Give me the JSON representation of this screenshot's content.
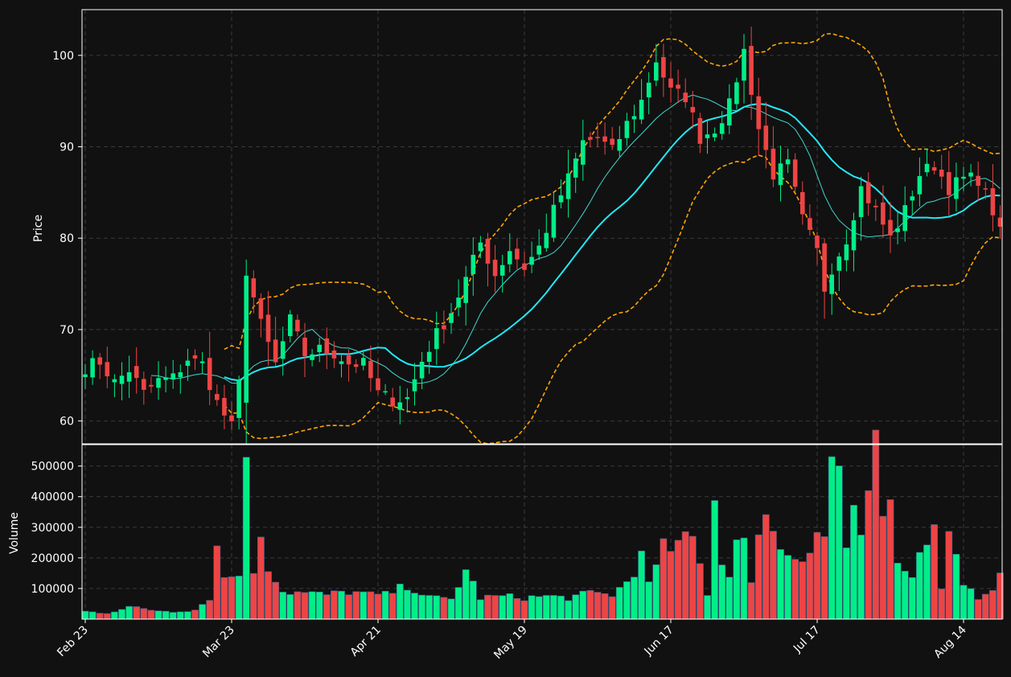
{
  "colors": {
    "background": "#111111",
    "up": "#00ee88",
    "down": "#ee4444",
    "ma_fast": "#40d8d0",
    "ma_slow": "#22e8f8",
    "bands": "#ffa500",
    "grid": "#3a3a3a",
    "axis": "#ffffff"
  },
  "chart_data": {
    "type": "candlestick",
    "grid": true,
    "price_panel": {
      "ylabel": "Price",
      "ylim": [
        57.5,
        105
      ],
      "yticks": [
        60,
        70,
        80,
        90,
        100
      ]
    },
    "volume_panel": {
      "ylabel": "Volume",
      "ylim": [
        0,
        570000
      ],
      "yticks": [
        100000,
        200000,
        300000,
        400000,
        500000
      ]
    },
    "x_tick_labels": [
      {
        "label": "Feb 23",
        "index": 0
      },
      {
        "label": "Mar 23",
        "index": 20
      },
      {
        "label": "Apr 21",
        "index": 40
      },
      {
        "label": "May 19",
        "index": 60
      },
      {
        "label": "Jun 17",
        "index": 80
      },
      {
        "label": "Jul 17",
        "index": 100
      },
      {
        "label": "Aug 14",
        "index": 120
      }
    ],
    "close_anchors": [
      [
        0,
        65.9
      ],
      [
        2,
        66.5
      ],
      [
        4,
        64.2
      ],
      [
        6,
        65.6
      ],
      [
        8,
        63.0
      ],
      [
        10,
        64.4
      ],
      [
        12,
        64.7
      ],
      [
        14,
        66.8
      ],
      [
        16,
        66.2
      ],
      [
        18,
        62.0
      ],
      [
        20,
        59.3
      ],
      [
        21,
        64.0
      ],
      [
        22,
        76.5
      ],
      [
        24,
        70.5
      ],
      [
        26,
        66.2
      ],
      [
        28,
        71.0
      ],
      [
        30,
        67.3
      ],
      [
        32,
        67.8
      ],
      [
        34,
        67.4
      ],
      [
        36,
        66.3
      ],
      [
        38,
        66.2
      ],
      [
        40,
        63.0
      ],
      [
        42,
        62.3
      ],
      [
        44,
        62.5
      ],
      [
        46,
        66.6
      ],
      [
        48,
        69.5
      ],
      [
        50,
        72.0
      ],
      [
        52,
        75.5
      ],
      [
        54,
        79.5
      ],
      [
        56,
        76.0
      ],
      [
        58,
        78.8
      ],
      [
        60,
        76.8
      ],
      [
        62,
        79.0
      ],
      [
        64,
        83.0
      ],
      [
        66,
        86.5
      ],
      [
        68,
        90.5
      ],
      [
        70,
        91.0
      ],
      [
        72,
        89.5
      ],
      [
        74,
        92.5
      ],
      [
        76,
        95.0
      ],
      [
        78,
        99.5
      ],
      [
        80,
        96.0
      ],
      [
        82,
        95.5
      ],
      [
        84,
        91.0
      ],
      [
        86,
        92.0
      ],
      [
        88,
        94.5
      ],
      [
        90,
        100.5
      ],
      [
        92,
        92.0
      ],
      [
        94,
        87.0
      ],
      [
        96,
        88.0
      ],
      [
        98,
        82.0
      ],
      [
        100,
        78.5
      ],
      [
        101,
        74.5
      ],
      [
        102,
        76.8
      ],
      [
        104,
        80.0
      ],
      [
        106,
        85.5
      ],
      [
        108,
        83.0
      ],
      [
        110,
        80.0
      ],
      [
        112,
        83.0
      ],
      [
        114,
        87.0
      ],
      [
        116,
        88.0
      ],
      [
        118,
        85.5
      ],
      [
        120,
        86.5
      ],
      [
        122,
        86.5
      ],
      [
        124,
        83.0
      ],
      [
        125,
        80.5
      ]
    ],
    "volume_anchors": [
      [
        0,
        25000
      ],
      [
        3,
        20000
      ],
      [
        6,
        40000
      ],
      [
        9,
        30000
      ],
      [
        12,
        25000
      ],
      [
        15,
        30000
      ],
      [
        17,
        70000
      ],
      [
        18,
        230000
      ],
      [
        19,
        140000
      ],
      [
        20,
        140000
      ],
      [
        21,
        160000
      ],
      [
        22,
        480000
      ],
      [
        23,
        160000
      ],
      [
        24,
        285000
      ],
      [
        25,
        175000
      ],
      [
        27,
        90000
      ],
      [
        30,
        85000
      ],
      [
        33,
        80000
      ],
      [
        36,
        90000
      ],
      [
        39,
        80000
      ],
      [
        41,
        80000
      ],
      [
        44,
        110000
      ],
      [
        47,
        70000
      ],
      [
        50,
        65000
      ],
      [
        52,
        160000
      ],
      [
        54,
        70000
      ],
      [
        57,
        75000
      ],
      [
        60,
        70000
      ],
      [
        63,
        75000
      ],
      [
        66,
        70000
      ],
      [
        69,
        85000
      ],
      [
        72,
        80000
      ],
      [
        75,
        140000
      ],
      [
        76,
        260000
      ],
      [
        77,
        110000
      ],
      [
        79,
        230000
      ],
      [
        81,
        240000
      ],
      [
        83,
        265000
      ],
      [
        85,
        85000
      ],
      [
        86,
        420000
      ],
      [
        87,
        180000
      ],
      [
        88,
        140000
      ],
      [
        89,
        300000
      ],
      [
        90,
        260000
      ],
      [
        91,
        110000
      ],
      [
        93,
        390000
      ],
      [
        95,
        220000
      ],
      [
        98,
        200000
      ],
      [
        100,
        295000
      ],
      [
        101,
        275000
      ],
      [
        102,
        510000
      ],
      [
        103,
        500000
      ],
      [
        104,
        230000
      ],
      [
        105,
        380000
      ],
      [
        106,
        265000
      ],
      [
        107,
        375000
      ],
      [
        108,
        545000
      ],
      [
        109,
        340000
      ],
      [
        110,
        355000
      ],
      [
        111,
        160000
      ],
      [
        113,
        140000
      ],
      [
        115,
        280000
      ],
      [
        116,
        330000
      ],
      [
        117,
        115000
      ],
      [
        118,
        260000
      ],
      [
        119,
        240000
      ],
      [
        120,
        120000
      ],
      [
        122,
        70000
      ],
      [
        124,
        105000
      ],
      [
        125,
        140000
      ]
    ],
    "n_candles": 126,
    "series": [
      {
        "kind": "candles"
      },
      {
        "kind": "moving-average-fast",
        "window": 10
      },
      {
        "kind": "moving-average-slow",
        "window": 20
      },
      {
        "kind": "bollinger-upper"
      },
      {
        "kind": "bollinger-lower"
      }
    ]
  }
}
